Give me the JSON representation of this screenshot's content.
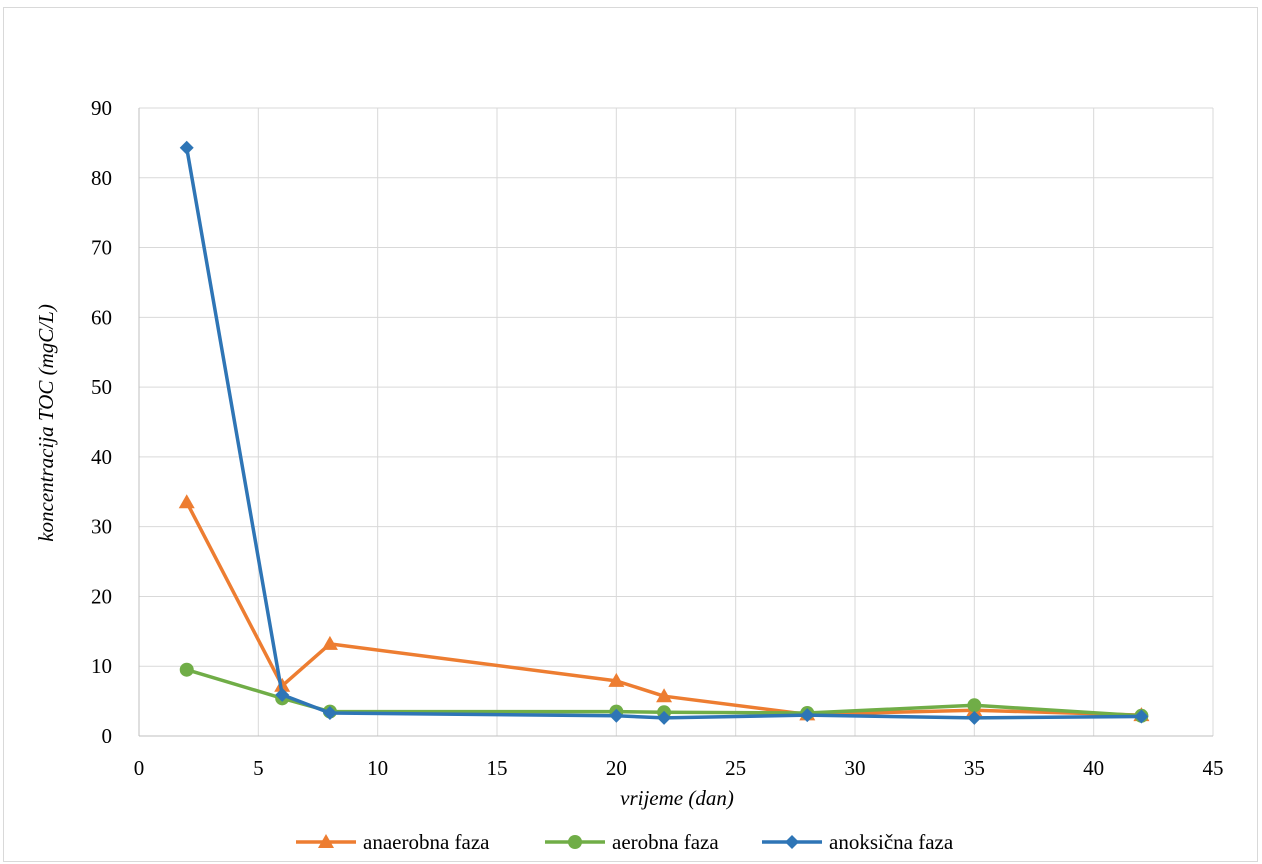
{
  "chart_data": {
    "type": "line",
    "title": "",
    "xlabel": "vrijeme (dan)",
    "ylabel": "koncentracija TOC (mgC/L)",
    "xlim": [
      0,
      45
    ],
    "ylim": [
      0,
      90
    ],
    "xticks": [
      0,
      5,
      10,
      15,
      20,
      25,
      30,
      35,
      40,
      45
    ],
    "yticks": [
      0,
      10,
      20,
      30,
      40,
      50,
      60,
      70,
      80,
      90
    ],
    "grid": true,
    "legend_position": "bottom",
    "x": [
      2,
      6,
      8,
      20,
      22,
      28,
      35,
      42
    ],
    "series": [
      {
        "name": "anaerobna faza",
        "color": "#ED7D31",
        "marker": "triangle",
        "values": [
          33.5,
          7.2,
          13.2,
          7.9,
          5.7,
          3.1,
          3.7,
          3.0
        ]
      },
      {
        "name": "aerobna faza",
        "color": "#70AD47",
        "marker": "circle",
        "values": [
          9.5,
          5.4,
          3.5,
          3.5,
          3.4,
          3.3,
          4.4,
          2.9
        ]
      },
      {
        "name": "anoksična faza",
        "color": "#2E75B6",
        "marker": "diamond",
        "values": [
          84.3,
          5.9,
          3.3,
          2.9,
          2.6,
          3.0,
          2.6,
          2.8
        ]
      }
    ]
  }
}
